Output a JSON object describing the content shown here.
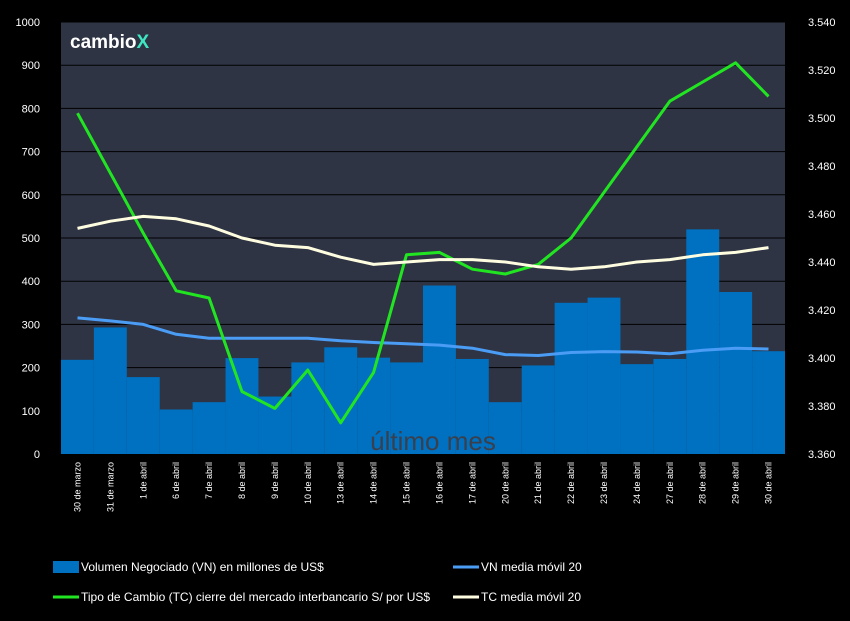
{
  "logo": {
    "text": "cambio",
    "mark": "X",
    "mark_color": "#3ee6c2"
  },
  "chart_data": {
    "type": "bar",
    "categories": [
      "30 de marzo",
      "31 de marzo",
      "1 de abril",
      "6 de abril",
      "7 de abril",
      "8 de abril",
      "9 de abril",
      "10 de abril",
      "13 de abril",
      "14 de abril",
      "15 de abril",
      "16 de abril",
      "17 de abril",
      "20 de abril",
      "21 de abril",
      "22 de abril",
      "23 de abril",
      "24 de abril",
      "27 de abril",
      "28 de abril",
      "29 de abril",
      "30 de abril"
    ],
    "annotation": "último mes",
    "y_left": {
      "min": 0,
      "max": 1000,
      "step": 100,
      "ticks": [
        "0",
        "100",
        "200",
        "300",
        "400",
        "500",
        "600",
        "700",
        "800",
        "900",
        "1000"
      ]
    },
    "y_right": {
      "min": 3.36,
      "max": 3.54,
      "step": 0.02,
      "ticks": [
        "3.360",
        "3.380",
        "3.400",
        "3.420",
        "3.440",
        "3.460",
        "3.480",
        "3.500",
        "3.520",
        "3.540"
      ]
    },
    "grid": "horizontal",
    "legend_position": "bottom",
    "series": [
      {
        "name": "Volumen Negociado (VN) en millones de US$",
        "type": "bar",
        "axis": "left",
        "color": "#0070c0",
        "values": [
          218,
          293,
          178,
          103,
          120,
          222,
          133,
          212,
          247,
          223,
          212,
          390,
          220,
          120,
          205,
          350,
          362,
          208,
          220,
          520,
          375,
          238
        ]
      },
      {
        "name": "VN media móvil 20",
        "type": "line",
        "axis": "left",
        "color": "#4a9cf5",
        "values": [
          315,
          308,
          300,
          277,
          268,
          268,
          268,
          268,
          262,
          258,
          255,
          252,
          245,
          230,
          228,
          235,
          237,
          236,
          232,
          240,
          245,
          243
        ]
      },
      {
        "name": "Tipo de Cambio (TC) cierre del mercado interbancario S/ por US$",
        "type": "line",
        "axis": "right",
        "color": "#22e522",
        "values": [
          3.502,
          3.477,
          3.452,
          3.428,
          3.425,
          3.386,
          3.379,
          3.395,
          3.373,
          3.394,
          3.443,
          3.444,
          3.437,
          3.435,
          3.439,
          3.45,
          3.469,
          3.488,
          3.507,
          3.515,
          3.523,
          3.509
        ]
      },
      {
        "name": "TC media móvil 20",
        "type": "line",
        "axis": "right",
        "color": "#fffde0",
        "values": [
          3.454,
          3.457,
          3.459,
          3.458,
          3.455,
          3.45,
          3.447,
          3.446,
          3.442,
          3.439,
          3.44,
          3.441,
          3.441,
          3.44,
          3.438,
          3.437,
          3.438,
          3.44,
          3.441,
          3.443,
          3.444,
          3.446
        ]
      }
    ]
  }
}
